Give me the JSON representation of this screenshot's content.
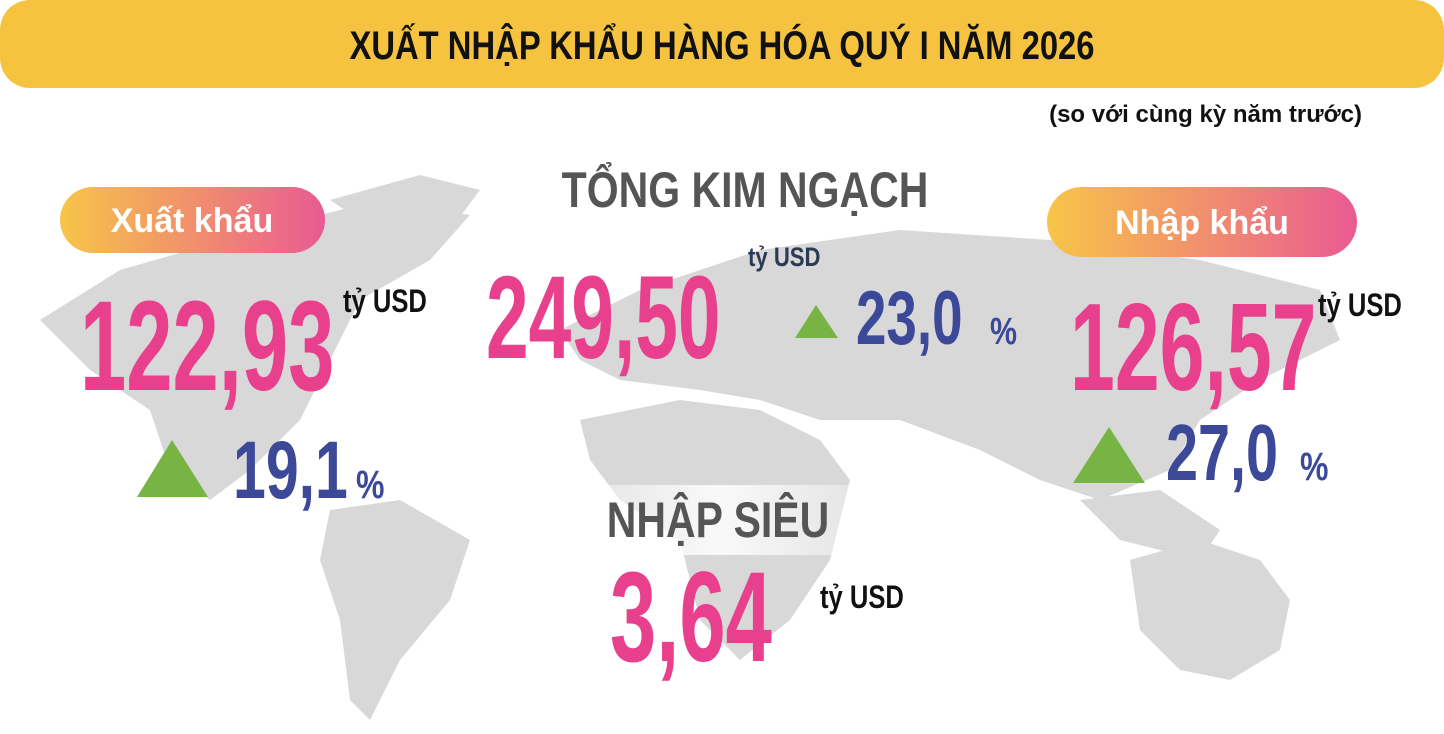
{
  "header": {
    "title": "XUẤT NHẬP KHẨU HÀNG HÓA QUÝ I NĂM 2026",
    "subtitle": "(so với cùng kỳ năm trước)"
  },
  "export": {
    "label": "Xuất khẩu",
    "value": "122,93",
    "unit": "tỷ USD",
    "change": "19,1",
    "change_unit": "%"
  },
  "total": {
    "label": "TỔNG KIM NGẠCH",
    "value": "249,50",
    "unit": "tỷ USD",
    "change": "23,0",
    "change_unit": "%"
  },
  "import": {
    "label": "Nhập khẩu",
    "value": "126,57",
    "unit": "tỷ USD",
    "change": "27,0",
    "change_unit": "%"
  },
  "deficit": {
    "label": "NHẬP SIÊU",
    "value": "3,64",
    "unit": "tỷ USD"
  }
}
